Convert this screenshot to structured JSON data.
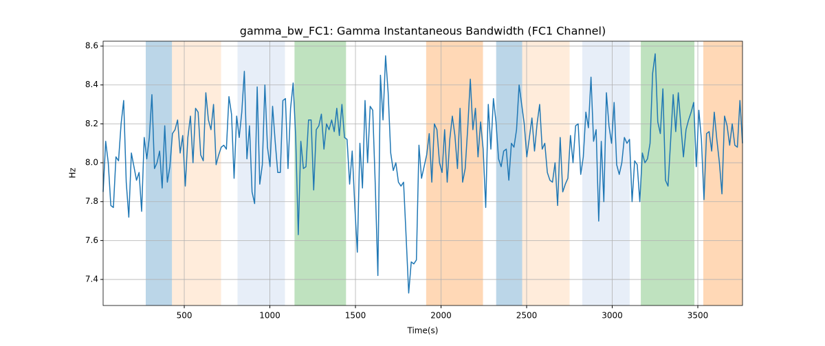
{
  "chart_data": {
    "type": "line",
    "title": "gamma_bw_FC1: Gamma Instantaneous Bandwidth (FC1 Channel)",
    "xlabel": "Time(s)",
    "ylabel": "Hz",
    "xlim": [
      26,
      3761
    ],
    "ylim": [
      7.266,
      8.625
    ],
    "xticks": [
      500,
      1000,
      1500,
      2000,
      2500,
      3000,
      3500
    ],
    "yticks": [
      7.4,
      7.6,
      7.8,
      {
        "value": 8,
        "label": "8.0"
      },
      8.2,
      8.4,
      8.6
    ],
    "grid": true,
    "spans": [
      {
        "start": 275,
        "end": 428,
        "color": "#1f77b4",
        "opacity": 0.3
      },
      {
        "start": 428,
        "end": 715,
        "color": "#ff7f0e",
        "opacity": 0.15
      },
      {
        "start": 811,
        "end": 1088,
        "color": "#aec7e8",
        "opacity": 0.3
      },
      {
        "start": 1144,
        "end": 1445,
        "color": "#2ca02c",
        "opacity": 0.3
      },
      {
        "start": 1913,
        "end": 2245,
        "color": "#ff7f0e",
        "opacity": 0.3
      },
      {
        "start": 2322,
        "end": 2474,
        "color": "#1f77b4",
        "opacity": 0.3
      },
      {
        "start": 2474,
        "end": 2751,
        "color": "#ff7f0e",
        "opacity": 0.15
      },
      {
        "start": 2825,
        "end": 3102,
        "color": "#aec7e8",
        "opacity": 0.3
      },
      {
        "start": 3167,
        "end": 3480,
        "color": "#2ca02c",
        "opacity": 0.3
      },
      {
        "start": 3532,
        "end": 3761,
        "color": "#ff7f0e",
        "opacity": 0.3
      }
    ],
    "series": [
      {
        "color": "#1f77b4",
        "x": [
          26,
          41,
          56,
          71,
          86,
          101,
          116,
          131,
          146,
          161,
          176,
          191,
          206,
          221,
          236,
          251,
          266,
          281,
          296,
          311,
          326,
          341,
          356,
          371,
          386,
          401,
          416,
          431,
          446,
          461,
          476,
          491,
          506,
          521,
          536,
          551,
          566,
          581,
          596,
          611,
          626,
          641,
          656,
          671,
          686,
          701,
          716,
          731,
          746,
          761,
          776,
          791,
          806,
          821,
          836,
          851,
          866,
          881,
          896,
          911,
          926,
          941,
          956,
          971,
          986,
          1001,
          1016,
          1031,
          1046,
          1061,
          1076,
          1091,
          1106,
          1121,
          1136,
          1151,
          1166,
          1181,
          1196,
          1211,
          1226,
          1241,
          1256,
          1271,
          1286,
          1301,
          1316,
          1331,
          1346,
          1361,
          1376,
          1391,
          1406,
          1421,
          1436,
          1451,
          1466,
          1481,
          1496,
          1511,
          1526,
          1541,
          1556,
          1571,
          1586,
          1601,
          1616,
          1631,
          1646,
          1661,
          1676,
          1691,
          1706,
          1721,
          1736,
          1751,
          1766,
          1781,
          1796,
          1811,
          1826,
          1841,
          1856,
          1871,
          1886,
          1901,
          1916,
          1931,
          1946,
          1961,
          1976,
          1991,
          2006,
          2021,
          2036,
          2051,
          2066,
          2081,
          2096,
          2111,
          2126,
          2141,
          2156,
          2171,
          2186,
          2201,
          2216,
          2231,
          2246,
          2261,
          2276,
          2291,
          2306,
          2321,
          2336,
          2351,
          2366,
          2381,
          2396,
          2411,
          2426,
          2441,
          2456,
          2471,
          2486,
          2501,
          2516,
          2531,
          2546,
          2561,
          2576,
          2591,
          2606,
          2621,
          2636,
          2651,
          2666,
          2681,
          2696,
          2711,
          2726,
          2741,
          2756,
          2771,
          2786,
          2801,
          2816,
          2831,
          2846,
          2861,
          2876,
          2891,
          2906,
          2921,
          2936,
          2951,
          2966,
          2981,
          2996,
          3011,
          3026,
          3041,
          3056,
          3071,
          3086,
          3101,
          3116,
          3131,
          3146,
          3161,
          3176,
          3191,
          3206,
          3221,
          3236,
          3251,
          3266,
          3281,
          3296,
          3311,
          3326,
          3341,
          3356,
          3371,
          3386,
          3401,
          3416,
          3431,
          3446,
          3461,
          3476,
          3491,
          3506,
          3521,
          3536,
          3551,
          3566,
          3581,
          3596,
          3611,
          3626,
          3641,
          3656,
          3671,
          3686,
          3701,
          3716,
          3731,
          3746,
          3761
        ],
        "values": [
          7.85,
          8.11,
          8.0,
          7.78,
          7.77,
          8.03,
          8.01,
          8.2,
          8.32,
          7.9,
          7.72,
          8.05,
          7.98,
          7.91,
          7.95,
          7.75,
          8.13,
          8.02,
          8.13,
          8.35,
          7.97,
          8.0,
          8.06,
          7.87,
          8.19,
          7.9,
          7.98,
          8.15,
          8.17,
          8.22,
          8.05,
          8.14,
          7.88,
          8.13,
          8.24,
          8.0,
          8.28,
          8.26,
          8.04,
          8.01,
          8.36,
          8.22,
          8.17,
          8.3,
          7.99,
          8.04,
          8.08,
          8.09,
          8.07,
          8.34,
          8.25,
          7.92,
          8.24,
          8.13,
          8.26,
          8.47,
          8.02,
          8.19,
          7.85,
          7.79,
          8.39,
          7.89,
          7.99,
          8.4,
          8.08,
          7.98,
          8.29,
          8.11,
          7.95,
          7.95,
          8.32,
          8.33,
          7.97,
          8.28,
          8.41,
          8.13,
          7.63,
          8.11,
          7.97,
          7.98,
          8.22,
          8.22,
          7.86,
          8.17,
          8.19,
          8.25,
          8.07,
          8.2,
          8.17,
          8.22,
          8.16,
          8.28,
          8.14,
          8.3,
          8.13,
          8.12,
          7.89,
          8.06,
          7.78,
          7.54,
          8.1,
          7.87,
          8.32,
          8.0,
          8.29,
          8.27,
          7.88,
          7.42,
          8.45,
          8.22,
          8.55,
          8.36,
          8.05,
          7.96,
          8.0,
          7.9,
          7.88,
          7.9,
          7.62,
          7.33,
          7.49,
          7.48,
          7.5,
          8.09,
          7.92,
          7.98,
          8.04,
          8.15,
          7.9,
          8.2,
          8.17,
          8.0,
          7.95,
          8.17,
          7.9,
          8.12,
          8.24,
          8.14,
          7.97,
          8.28,
          7.9,
          7.97,
          8.18,
          8.43,
          8.17,
          8.28,
          8.03,
          8.21,
          8.07,
          7.77,
          8.3,
          8.07,
          8.33,
          8.21,
          8.02,
          7.98,
          8.06,
          8.07,
          7.91,
          8.1,
          8.08,
          8.17,
          8.4,
          8.3,
          8.2,
          8.03,
          8.13,
          8.23,
          8.06,
          8.2,
          8.3,
          8.07,
          8.1,
          7.95,
          7.91,
          7.9,
          8.0,
          7.78,
          8.13,
          7.85,
          7.89,
          7.92,
          8.14,
          8.0,
          8.19,
          8.2,
          7.94,
          8.03,
          8.26,
          8.18,
          8.44,
          8.11,
          8.17,
          7.7,
          8.11,
          7.8,
          8.36,
          8.19,
          8.1,
          8.31,
          7.99,
          7.94,
          8.0,
          8.13,
          8.1,
          8.12,
          7.8,
          8.01,
          7.99,
          7.8,
          8.05,
          8.0,
          8.02,
          8.1,
          8.46,
          8.56,
          8.21,
          8.15,
          8.38,
          7.91,
          7.88,
          8.11,
          8.35,
          8.16,
          8.36,
          8.19,
          8.03,
          8.17,
          8.22,
          8.26,
          8.31,
          7.98,
          8.27,
          8.12,
          7.81,
          8.15,
          8.16,
          8.06,
          8.26,
          8.12,
          8.0,
          7.84,
          8.24,
          8.19,
          8.09,
          8.2,
          8.09,
          8.08,
          8.32,
          8.1
        ]
      }
    ]
  }
}
